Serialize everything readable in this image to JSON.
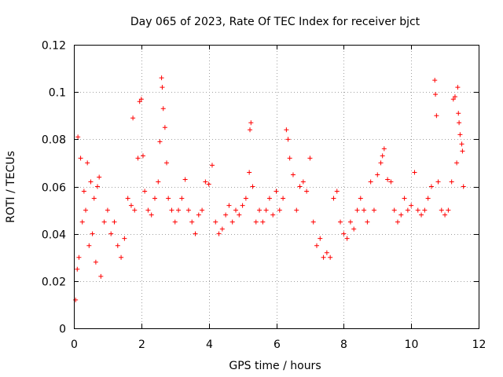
{
  "chart_data": {
    "type": "scatter",
    "title": "Day 065 of 2023, Rate Of TEC Index for receiver bjct",
    "xlabel": "GPS time / hours",
    "ylabel": "ROTI / TECUs",
    "xlim": [
      0,
      12
    ],
    "ylim": [
      0,
      0.12
    ],
    "xticks": [
      0,
      2,
      4,
      6,
      8,
      10,
      12
    ],
    "xtick_labels": [
      "0",
      "2",
      "4",
      "6",
      "8",
      "10",
      "12"
    ],
    "yticks": [
      0,
      0.02,
      0.04,
      0.06,
      0.08,
      0.1,
      0.12
    ],
    "ytick_labels": [
      "0",
      "0.02",
      "0.04",
      "0.06",
      "0.08",
      "0.1",
      "0.12"
    ],
    "grid": true,
    "marker": "plus",
    "color": "#ff0000",
    "series": [
      {
        "name": "ROTI",
        "points": [
          [
            0.05,
            0.012
          ],
          [
            0.1,
            0.025
          ],
          [
            0.12,
            0.081
          ],
          [
            0.15,
            0.03
          ],
          [
            0.2,
            0.072
          ],
          [
            0.25,
            0.045
          ],
          [
            0.3,
            0.058
          ],
          [
            0.35,
            0.05
          ],
          [
            0.4,
            0.07
          ],
          [
            0.45,
            0.035
          ],
          [
            0.5,
            0.062
          ],
          [
            0.55,
            0.04
          ],
          [
            0.6,
            0.055
          ],
          [
            0.65,
            0.028
          ],
          [
            0.7,
            0.06
          ],
          [
            0.75,
            0.064
          ],
          [
            0.8,
            0.022
          ],
          [
            0.9,
            0.045
          ],
          [
            1.0,
            0.05
          ],
          [
            1.1,
            0.04
          ],
          [
            1.2,
            0.045
          ],
          [
            1.3,
            0.035
          ],
          [
            1.4,
            0.03
          ],
          [
            1.5,
            0.038
          ],
          [
            1.6,
            0.055
          ],
          [
            1.7,
            0.052
          ],
          [
            1.75,
            0.089
          ],
          [
            1.8,
            0.05
          ],
          [
            1.9,
            0.072
          ],
          [
            1.95,
            0.096
          ],
          [
            2.0,
            0.097
          ],
          [
            2.05,
            0.073
          ],
          [
            2.1,
            0.058
          ],
          [
            2.2,
            0.05
          ],
          [
            2.3,
            0.048
          ],
          [
            2.4,
            0.055
          ],
          [
            2.5,
            0.062
          ],
          [
            2.55,
            0.079
          ],
          [
            2.6,
            0.106
          ],
          [
            2.62,
            0.102
          ],
          [
            2.65,
            0.093
          ],
          [
            2.7,
            0.085
          ],
          [
            2.75,
            0.07
          ],
          [
            2.8,
            0.055
          ],
          [
            2.9,
            0.05
          ],
          [
            3.0,
            0.045
          ],
          [
            3.1,
            0.05
          ],
          [
            3.2,
            0.055
          ],
          [
            3.3,
            0.063
          ],
          [
            3.4,
            0.05
          ],
          [
            3.5,
            0.045
          ],
          [
            3.6,
            0.04
          ],
          [
            3.7,
            0.048
          ],
          [
            3.8,
            0.05
          ],
          [
            3.9,
            0.062
          ],
          [
            4.0,
            0.061
          ],
          [
            4.1,
            0.069
          ],
          [
            4.2,
            0.045
          ],
          [
            4.3,
            0.04
          ],
          [
            4.4,
            0.042
          ],
          [
            4.5,
            0.048
          ],
          [
            4.6,
            0.052
          ],
          [
            4.7,
            0.045
          ],
          [
            4.8,
            0.05
          ],
          [
            4.9,
            0.048
          ],
          [
            5.0,
            0.052
          ],
          [
            5.1,
            0.055
          ],
          [
            5.2,
            0.066
          ],
          [
            5.22,
            0.084
          ],
          [
            5.25,
            0.087
          ],
          [
            5.3,
            0.06
          ],
          [
            5.4,
            0.045
          ],
          [
            5.5,
            0.05
          ],
          [
            5.6,
            0.045
          ],
          [
            5.7,
            0.05
          ],
          [
            5.8,
            0.055
          ],
          [
            5.9,
            0.048
          ],
          [
            6.0,
            0.058
          ],
          [
            6.1,
            0.05
          ],
          [
            6.2,
            0.055
          ],
          [
            6.3,
            0.084
          ],
          [
            6.35,
            0.08
          ],
          [
            6.4,
            0.072
          ],
          [
            6.5,
            0.065
          ],
          [
            6.6,
            0.05
          ],
          [
            6.7,
            0.06
          ],
          [
            6.8,
            0.062
          ],
          [
            6.9,
            0.058
          ],
          [
            7.0,
            0.072
          ],
          [
            7.1,
            0.045
          ],
          [
            7.2,
            0.035
          ],
          [
            7.3,
            0.038
          ],
          [
            7.4,
            0.03
          ],
          [
            7.5,
            0.032
          ],
          [
            7.6,
            0.03
          ],
          [
            7.7,
            0.055
          ],
          [
            7.8,
            0.058
          ],
          [
            7.9,
            0.045
          ],
          [
            8.0,
            0.04
          ],
          [
            8.1,
            0.038
          ],
          [
            8.2,
            0.045
          ],
          [
            8.3,
            0.042
          ],
          [
            8.4,
            0.05
          ],
          [
            8.5,
            0.055
          ],
          [
            8.6,
            0.05
          ],
          [
            8.7,
            0.045
          ],
          [
            8.8,
            0.062
          ],
          [
            8.9,
            0.05
          ],
          [
            9.0,
            0.065
          ],
          [
            9.1,
            0.07
          ],
          [
            9.15,
            0.073
          ],
          [
            9.2,
            0.076
          ],
          [
            9.3,
            0.063
          ],
          [
            9.4,
            0.062
          ],
          [
            9.5,
            0.05
          ],
          [
            9.6,
            0.045
          ],
          [
            9.7,
            0.048
          ],
          [
            9.8,
            0.055
          ],
          [
            9.9,
            0.05
          ],
          [
            10.0,
            0.052
          ],
          [
            10.1,
            0.066
          ],
          [
            10.2,
            0.05
          ],
          [
            10.3,
            0.048
          ],
          [
            10.4,
            0.05
          ],
          [
            10.5,
            0.055
          ],
          [
            10.6,
            0.06
          ],
          [
            10.7,
            0.105
          ],
          [
            10.72,
            0.099
          ],
          [
            10.75,
            0.09
          ],
          [
            10.8,
            0.062
          ],
          [
            10.9,
            0.05
          ],
          [
            11.0,
            0.048
          ],
          [
            11.1,
            0.05
          ],
          [
            11.2,
            0.062
          ],
          [
            11.25,
            0.097
          ],
          [
            11.3,
            0.098
          ],
          [
            11.35,
            0.07
          ],
          [
            11.38,
            0.102
          ],
          [
            11.4,
            0.091
          ],
          [
            11.42,
            0.087
          ],
          [
            11.45,
            0.082
          ],
          [
            11.5,
            0.078
          ],
          [
            11.52,
            0.075
          ],
          [
            11.55,
            0.06
          ]
        ]
      }
    ]
  }
}
